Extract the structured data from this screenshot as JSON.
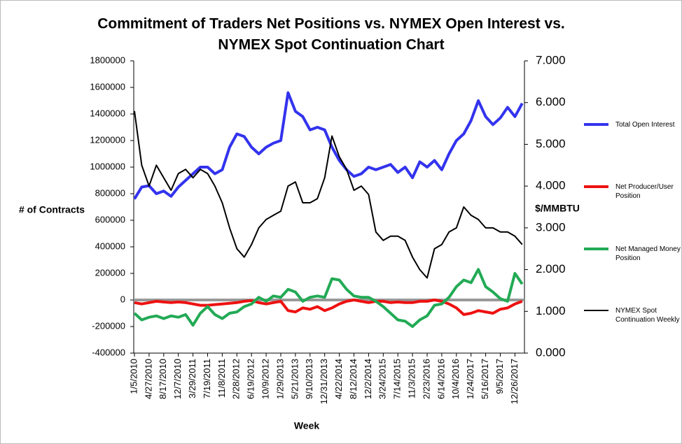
{
  "chart_data": {
    "type": "line",
    "title": [
      "Commitment of Traders Net Positions vs. NYMEX Open Interest vs.",
      "NYMEX Spot Continuation Chart"
    ],
    "x_label": "Week",
    "y_label": "# of Contracts",
    "y2_label": "$/MMBTU",
    "categories": [
      "1/5/2010",
      null,
      "4/27/2010",
      null,
      "8/17/2010",
      null,
      "12/7/2010",
      null,
      "3/29/2011",
      null,
      "7/19/2011",
      null,
      "11/8/2011",
      null,
      "2/28/2012",
      null,
      "6/19/2012",
      null,
      "10/9/2012",
      null,
      "1/29/2013",
      null,
      "5/21/2013",
      null,
      "9/10/2013",
      null,
      "12/31/2013",
      null,
      "4/22/2014",
      null,
      "8/12/2014",
      null,
      "12/2/2014",
      null,
      "3/24/2015",
      null,
      "7/14/2015",
      null,
      "11/3/2015",
      null,
      "2/23/2016",
      null,
      "6/14/2016",
      null,
      "10/4/2016",
      null,
      "1/24/2017",
      null,
      "5/16/2017",
      null,
      "9/5/2017",
      null,
      "12/26/2017",
      null
    ],
    "series": [
      {
        "name": "Total Open Interest",
        "color": "#3333ee",
        "values": [
          760000,
          850000,
          860000,
          800000,
          820000,
          780000,
          850000,
          900000,
          950000,
          1000000,
          1000000,
          950000,
          980000,
          1150000,
          1250000,
          1230000,
          1150000,
          1100000,
          1150000,
          1180000,
          1200000,
          1560000,
          1420000,
          1380000,
          1280000,
          1300000,
          1280000,
          1150000,
          1050000,
          980000,
          930000,
          950000,
          1000000,
          980000,
          1000000,
          1020000,
          960000,
          1000000,
          920000,
          1040000,
          1000000,
          1050000,
          980000,
          1100000,
          1200000,
          1250000,
          1350000,
          1500000,
          1380000,
          1320000,
          1370000,
          1450000,
          1380000,
          1480000
        ]
      },
      {
        "name": "Net Producer/User Position",
        "color": "#ee1111",
        "values": [
          -20000,
          -30000,
          -20000,
          -10000,
          -15000,
          -20000,
          -15000,
          -20000,
          -30000,
          -40000,
          -40000,
          -35000,
          -30000,
          -25000,
          -20000,
          -10000,
          -5000,
          -20000,
          -30000,
          -20000,
          -10000,
          -80000,
          -90000,
          -60000,
          -70000,
          -50000,
          -80000,
          -60000,
          -30000,
          -10000,
          0,
          -10000,
          -20000,
          -10000,
          -10000,
          -20000,
          -15000,
          -20000,
          -20000,
          -10000,
          -10000,
          0,
          -10000,
          -30000,
          -60000,
          -110000,
          -100000,
          -80000,
          -90000,
          -100000,
          -70000,
          -60000,
          -30000,
          -10000
        ]
      },
      {
        "name": "Net Managed Money Position",
        "color": "#22aa55",
        "values": [
          -100000,
          -150000,
          -130000,
          -120000,
          -140000,
          -120000,
          -130000,
          -110000,
          -190000,
          -100000,
          -50000,
          -110000,
          -140000,
          -100000,
          -90000,
          -50000,
          -30000,
          20000,
          -10000,
          30000,
          20000,
          80000,
          60000,
          -10000,
          20000,
          30000,
          20000,
          160000,
          150000,
          80000,
          30000,
          20000,
          20000,
          -10000,
          -50000,
          -100000,
          -150000,
          -160000,
          -200000,
          -150000,
          -120000,
          -40000,
          -30000,
          20000,
          100000,
          150000,
          130000,
          230000,
          100000,
          60000,
          10000,
          -10000,
          200000,
          120000
        ]
      },
      {
        "name": "NYMEX Spot Continuation Weekly",
        "color": "#000000",
        "axis": "y2",
        "values": [
          5.8,
          4.5,
          4.0,
          4.5,
          4.2,
          3.9,
          4.3,
          4.4,
          4.2,
          4.4,
          4.3,
          4.0,
          3.6,
          3.0,
          2.5,
          2.3,
          2.6,
          3.0,
          3.2,
          3.3,
          3.4,
          4.0,
          4.1,
          3.6,
          3.6,
          3.7,
          4.2,
          5.2,
          4.7,
          4.4,
          3.9,
          4.0,
          3.8,
          2.9,
          2.7,
          2.8,
          2.8,
          2.7,
          2.3,
          2.0,
          1.8,
          2.5,
          2.6,
          2.9,
          3.0,
          3.5,
          3.3,
          3.2,
          3.0,
          3.0,
          2.9,
          2.9,
          2.8,
          2.6
        ]
      }
    ],
    "ylim": [
      -400000,
      1800000
    ],
    "yticks": [
      -400000,
      -200000,
      0,
      200000,
      400000,
      600000,
      800000,
      1000000,
      1200000,
      1400000,
      1600000,
      1800000
    ],
    "y2lim": [
      0,
      7
    ],
    "y2ticks": [
      {
        "value": 0,
        "label": "0.000"
      },
      {
        "value": 1,
        "label": "1.000"
      },
      {
        "value": 2,
        "label": "2.000"
      },
      {
        "value": 3,
        "label": "3.000"
      },
      {
        "value": 4,
        "label": "4.000"
      },
      {
        "value": 5,
        "label": "5.000"
      },
      {
        "value": 6,
        "label": "6.000"
      },
      {
        "value": 7,
        "label": "7.000"
      }
    ],
    "legend": "right"
  }
}
